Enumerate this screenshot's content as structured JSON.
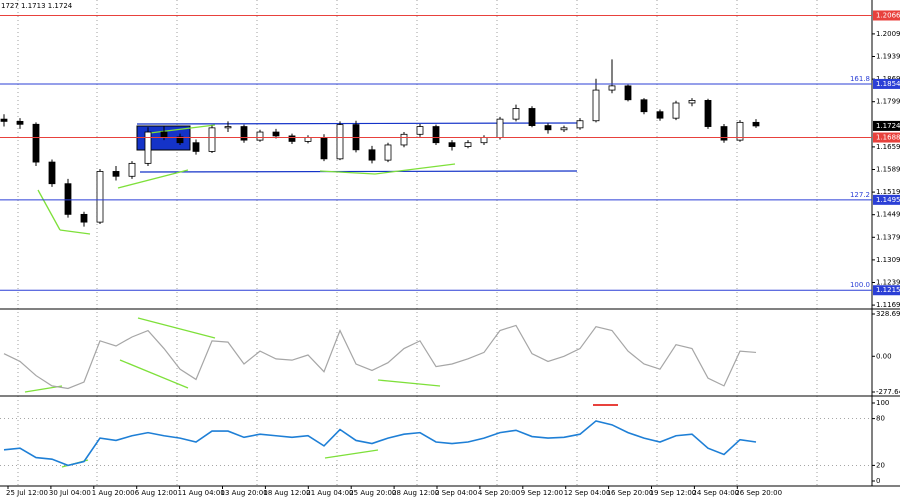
{
  "chart_data": {
    "type": "candlestick",
    "title": "1727 1.1713 1.1724",
    "color": "#000000",
    "open": [
      1.1745,
      1.1738,
      1.1729,
      1.1612,
      1.1545,
      1.145,
      1.1426,
      1.1583,
      1.1568,
      1.1608,
      1.1705,
      1.169,
      1.1672,
      1.1645,
      1.1718,
      1.1722,
      1.168,
      1.1705,
      1.1693,
      1.1676,
      1.1688,
      1.1622,
      1.1728,
      1.165,
      1.1618,
      1.1665,
      1.1698,
      1.1722,
      1.1672,
      1.166,
      1.1672,
      1.1688,
      1.1745,
      1.1778,
      1.1725,
      1.1712,
      1.1718,
      1.174,
      1.1835,
      1.1848,
      1.1805,
      1.1768,
      1.1748,
      1.1795,
      1.1803,
      1.1722,
      1.168,
      1.1735
    ],
    "high": [
      1.176,
      1.1748,
      1.1735,
      1.162,
      1.156,
      1.1458,
      1.159,
      1.16,
      1.1615,
      1.172,
      1.1725,
      1.17,
      1.1682,
      1.1725,
      1.1738,
      1.1728,
      1.1712,
      1.1715,
      1.17,
      1.1695,
      1.1698,
      1.1738,
      1.174,
      1.1662,
      1.1672,
      1.1705,
      1.173,
      1.1728,
      1.168,
      1.168,
      1.1695,
      1.1752,
      1.179,
      1.1785,
      1.1732,
      1.1725,
      1.1748,
      1.187,
      1.193,
      1.1852,
      1.181,
      1.1775,
      1.1802,
      1.181,
      1.1808,
      1.173,
      1.1742,
      1.1745
    ],
    "low": [
      1.1722,
      1.1715,
      1.16,
      1.1535,
      1.144,
      1.1412,
      1.142,
      1.1555,
      1.156,
      1.16,
      1.168,
      1.1665,
      1.1635,
      1.164,
      1.1705,
      1.1672,
      1.1675,
      1.1685,
      1.1668,
      1.167,
      1.1615,
      1.1618,
      1.1642,
      1.1608,
      1.1612,
      1.1658,
      1.169,
      1.1665,
      1.1648,
      1.1655,
      1.1665,
      1.1682,
      1.1738,
      1.172,
      1.17,
      1.1705,
      1.1712,
      1.1735,
      1.1825,
      1.18,
      1.176,
      1.174,
      1.1742,
      1.1785,
      1.1715,
      1.1672,
      1.1675,
      1.1718
    ],
    "close": [
      1.1738,
      1.1729,
      1.1612,
      1.1545,
      1.145,
      1.1426,
      1.1583,
      1.1568,
      1.1608,
      1.1705,
      1.169,
      1.1672,
      1.1645,
      1.1718,
      1.1722,
      1.168,
      1.1705,
      1.1693,
      1.1676,
      1.1688,
      1.1622,
      1.1728,
      1.165,
      1.1618,
      1.1665,
      1.1698,
      1.1722,
      1.1672,
      1.166,
      1.1672,
      1.1688,
      1.1745,
      1.1778,
      1.1725,
      1.1712,
      1.1718,
      1.174,
      1.1835,
      1.1848,
      1.1805,
      1.1768,
      1.1748,
      1.1795,
      1.1803,
      1.1722,
      1.168,
      1.1735,
      1.1724
    ],
    "ylim": [
      1.116,
      1.2114
    ],
    "yticks": [
      1.2009,
      1.1939,
      1.1869,
      1.1799,
      1.1659,
      1.1589,
      1.1519,
      1.1449,
      1.1379,
      1.1309,
      1.1239,
      1.1169
    ],
    "levels": [
      {
        "value": 1.2066,
        "color": "#e8413c"
      },
      {
        "value": 1.1854,
        "color": "#2b3fd6",
        "label": "161.8"
      },
      {
        "value": 1.1688,
        "color": "#e8413c"
      },
      {
        "value": 1.1495,
        "color": "#2b3fd6",
        "label": "127.2"
      },
      {
        "value": 1.1215,
        "color": "#2b3fd6",
        "label": "100.0"
      }
    ],
    "last_price": 1.1724,
    "categories": [
      "25 Jul 12:00",
      "30 Jul 04:00",
      "1 Aug 20:00",
      "6 Aug 12:00",
      "11 Aug 04:00",
      "13 Aug 20:00",
      "18 Aug 12:00",
      "21 Aug 04:00",
      "25 Aug 20:00",
      "28 Aug 12:00",
      "2 Sep 04:00",
      "4 Sep 20:00",
      "9 Sep 12:00",
      "12 Sep 04:00",
      "16 Sep 20:00",
      "19 Sep 12:00",
      "24 Sep 04:00",
      "26 Sep 20:00"
    ],
    "indicators": [
      {
        "type": "line",
        "color": "#a6a6a6",
        "values": [
          20,
          -40,
          -150,
          -230,
          -250,
          -200,
          120,
          80,
          150,
          200,
          60,
          -100,
          -180,
          120,
          110,
          -60,
          40,
          -20,
          -30,
          10,
          -120,
          200,
          -60,
          -110,
          -50,
          60,
          120,
          -80,
          -60,
          -20,
          30,
          200,
          240,
          20,
          -40,
          0,
          60,
          230,
          200,
          40,
          -60,
          -100,
          90,
          60,
          -170,
          -230,
          40,
          30
        ],
        "ylim": [
          -277.644,
          328.6976
        ],
        "yticks": [
          328.6976,
          {
            "value": 0,
            "label": "0.00"
          },
          -277.644
        ]
      },
      {
        "type": "line",
        "color": "#1e7fd6",
        "values": [
          40,
          42,
          30,
          28,
          20,
          25,
          55,
          52,
          58,
          62,
          58,
          55,
          50,
          64,
          64,
          56,
          60,
          58,
          56,
          58,
          45,
          66,
          52,
          48,
          55,
          60,
          62,
          50,
          48,
          50,
          55,
          62,
          65,
          57,
          55,
          56,
          60,
          77,
          72,
          62,
          55,
          50,
          58,
          60,
          42,
          34,
          53,
          50
        ],
        "ylim": [
          0,
          100
        ],
        "yticks": [
          100,
          80,
          20,
          0
        ]
      }
    ]
  }
}
